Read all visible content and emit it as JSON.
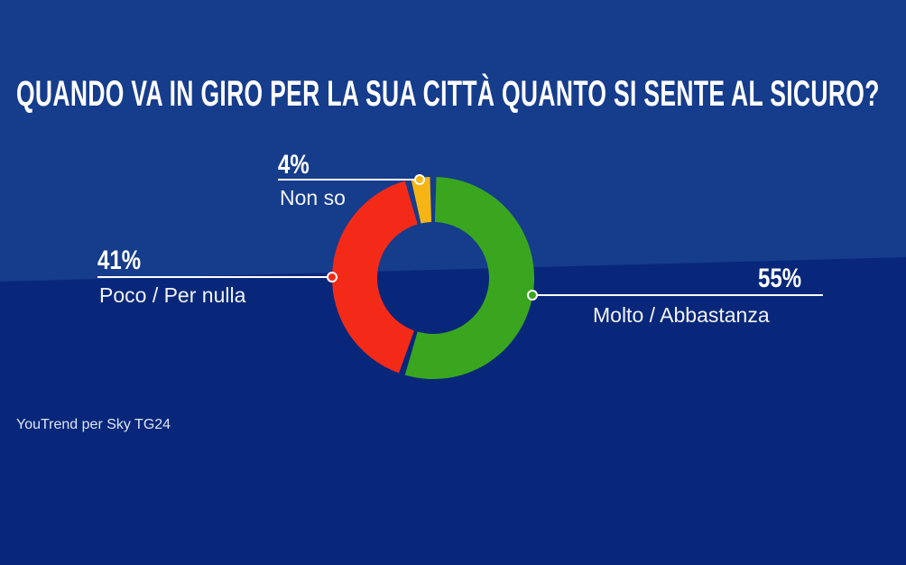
{
  "background_colors": {
    "upper": "#163c8c",
    "lower": "#08277a"
  },
  "chart_data": {
    "type": "pie",
    "donut": true,
    "title": "QUANDO VA IN GIRO PER LA SUA CITTÀ QUANTO SI SENTE AL SICURO?",
    "slices": [
      {
        "label": "Molto / Abbastanza",
        "value": 55,
        "value_label": "55%",
        "color": "#3aa61f"
      },
      {
        "label": "Poco / Per nulla",
        "value": 41,
        "value_label": "41%",
        "color": "#f42a18"
      },
      {
        "label": "Non so",
        "value": 4,
        "value_label": "4%",
        "color": "#f6b514"
      }
    ],
    "source": "YouTrend per Sky TG24"
  }
}
